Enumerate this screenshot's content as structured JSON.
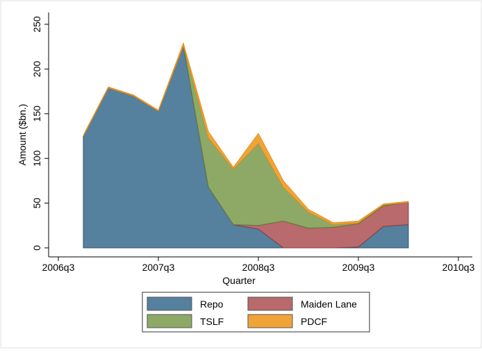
{
  "chart_data": {
    "type": "stacked-area",
    "x_label": "Quarter",
    "y_label": "Amount ($bn.)",
    "x": [
      "2006q4",
      "2007q1",
      "2007q2",
      "2007q3",
      "2007q4",
      "2008q1",
      "2008q2",
      "2008q3",
      "2008q4",
      "2009q1",
      "2009q2",
      "2009q3",
      "2009q4",
      "2010q1"
    ],
    "xlim": [
      "2006q3",
      "2010q3"
    ],
    "xticks": [
      "2006q3",
      "2007q3",
      "2008q3",
      "2009q3",
      "2010q3"
    ],
    "ylim": [
      0,
      250
    ],
    "yticks": [
      0,
      50,
      100,
      150,
      200,
      250
    ],
    "grid": false,
    "legend": "bottom",
    "series": [
      {
        "name": "Repo",
        "color": "#55809e",
        "values": [
          125,
          179,
          170,
          153,
          226,
          68,
          26,
          21,
          0,
          0,
          0,
          1,
          24,
          26
        ]
      },
      {
        "name": "Maiden Lane",
        "color": "#b86a6d",
        "values": [
          0,
          0,
          0,
          0,
          0,
          0,
          0,
          4,
          30,
          22,
          23,
          26,
          23,
          25
        ]
      },
      {
        "name": "TSLF",
        "color": "#8ea866",
        "values": [
          0,
          0,
          0,
          0,
          0,
          55,
          62,
          92,
          38,
          18,
          3,
          1,
          1,
          0
        ]
      },
      {
        "name": "PDCF",
        "color": "#f0a438",
        "values": [
          1,
          1,
          1,
          1,
          3,
          7,
          2,
          11,
          7,
          3,
          2,
          2,
          1,
          1
        ]
      }
    ]
  }
}
